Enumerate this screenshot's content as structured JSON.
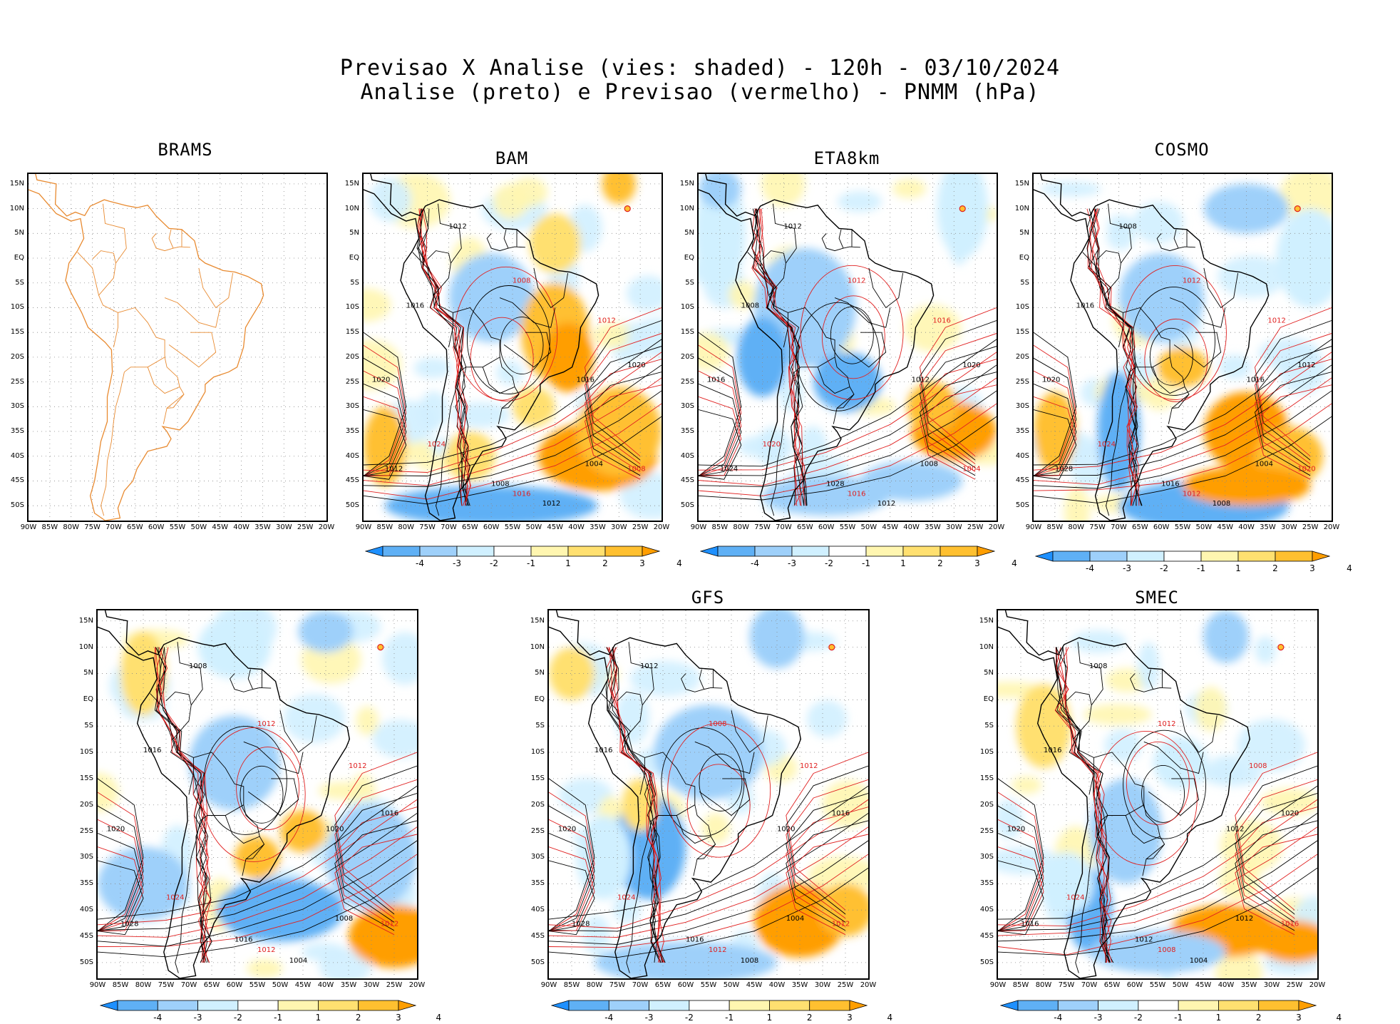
{
  "header": {
    "line1": "Previsao X Analise (vies: shaded) - 120h - 03/10/2024",
    "line2": "Analise (preto) e Previsao (vermelho) - PNMM (hPa)"
  },
  "lat_ticks": [
    "15N",
    "10N",
    "5N",
    "EQ",
    "5S",
    "10S",
    "15S",
    "20S",
    "25S",
    "30S",
    "35S",
    "40S",
    "45S",
    "50S"
  ],
  "lon_ticks": [
    "90W",
    "85W",
    "80W",
    "75W",
    "70W",
    "65W",
    "60W",
    "55W",
    "50W",
    "45W",
    "40W",
    "35W",
    "30W",
    "25W",
    "20W"
  ],
  "colorbar": {
    "labels": [
      "-4",
      "-3",
      "-2",
      "-1",
      "1",
      "2",
      "3",
      "4"
    ],
    "colors": [
      "#1e90ff",
      "#5fb0f5",
      "#9ed0fa",
      "#d0f0ff",
      "#ffffff",
      "#fff6b0",
      "#ffe070",
      "#ffc030",
      "#ff9e00"
    ]
  },
  "colors": {
    "analysis_contour": "#000000",
    "forecast_contour": "#e02020",
    "coastline_brams": "#e88a30"
  },
  "panels": [
    {
      "id": "brams",
      "title": "BRAMS",
      "has_data": false,
      "labels": []
    },
    {
      "id": "bam",
      "title": "BAM",
      "has_data": true,
      "labels": [
        "1012",
        "1008",
        "1016",
        "1020",
        "1024",
        "1012",
        "1008",
        "1016",
        "1012",
        "1004",
        "1008",
        "1020",
        "1016",
        "1012"
      ]
    },
    {
      "id": "eta8km",
      "title": "ETA8km",
      "has_data": true,
      "labels": [
        "1012",
        "1012",
        "1008",
        "1016",
        "1020",
        "1024",
        "1028",
        "1016",
        "1012",
        "1008",
        "1004",
        "1020",
        "1012",
        "1016"
      ]
    },
    {
      "id": "cosmo",
      "title": "COSMO",
      "has_data": true,
      "labels": [
        "1008",
        "1012",
        "1016",
        "1020",
        "1024",
        "1028",
        "1016",
        "1012",
        "1008",
        "1004",
        "1020",
        "1012",
        "1016",
        "1012"
      ]
    },
    {
      "id": "extra",
      "title": "",
      "has_data": true,
      "labels": [
        "1008",
        "1012",
        "1016",
        "1020",
        "1024",
        "1028",
        "1016",
        "1012",
        "1004",
        "1008",
        "1012",
        "1016",
        "1020",
        "1012"
      ]
    },
    {
      "id": "gfs",
      "title": "GFS",
      "has_data": true,
      "labels": [
        "1012",
        "1008",
        "1016",
        "1020",
        "1024",
        "1028",
        "1016",
        "1012",
        "1008",
        "1004",
        "1012",
        "1016",
        "1020",
        "1012"
      ]
    },
    {
      "id": "smec",
      "title": "SMEC",
      "has_data": true,
      "labels": [
        "1008",
        "1012",
        "1016",
        "1020",
        "1024",
        "1016",
        "1012",
        "1008",
        "1004",
        "1012",
        "1016",
        "1020",
        "1012",
        "1008"
      ]
    }
  ]
}
